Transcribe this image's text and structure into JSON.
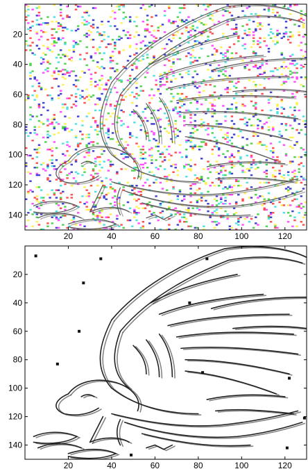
{
  "panels": [
    {
      "id": "top",
      "description_free": true,
      "xlim": [
        0,
        130
      ],
      "ylim": [
        0,
        150
      ],
      "x_ticks": [
        20,
        40,
        60,
        80,
        100,
        120
      ],
      "y_ticks": [
        20,
        40,
        60,
        80,
        100,
        120,
        140
      ],
      "background": "#ffffff",
      "noise_colors": [
        "#ff33ff",
        "#33dddd",
        "#ffee33",
        "#2222cc",
        "#ff3333",
        "#33cc33"
      ],
      "noise_density": 0.12
    },
    {
      "id": "bottom",
      "xlim": [
        0,
        130
      ],
      "ylim": [
        0,
        150
      ],
      "x_ticks": [
        20,
        40,
        60,
        80,
        100,
        120
      ],
      "y_ticks": [
        20,
        40,
        60,
        80,
        100,
        120,
        140
      ],
      "background": "#ffffff",
      "dot_color": "#111111",
      "dots": [
        [
          5,
          7
        ],
        [
          35,
          9
        ],
        [
          84,
          9
        ],
        [
          27,
          26
        ],
        [
          76,
          40
        ],
        [
          25,
          60
        ],
        [
          15,
          83
        ],
        [
          82,
          89
        ],
        [
          122,
          93
        ],
        [
          129,
          121
        ],
        [
          121,
          142
        ],
        [
          49,
          147
        ]
      ]
    }
  ]
}
